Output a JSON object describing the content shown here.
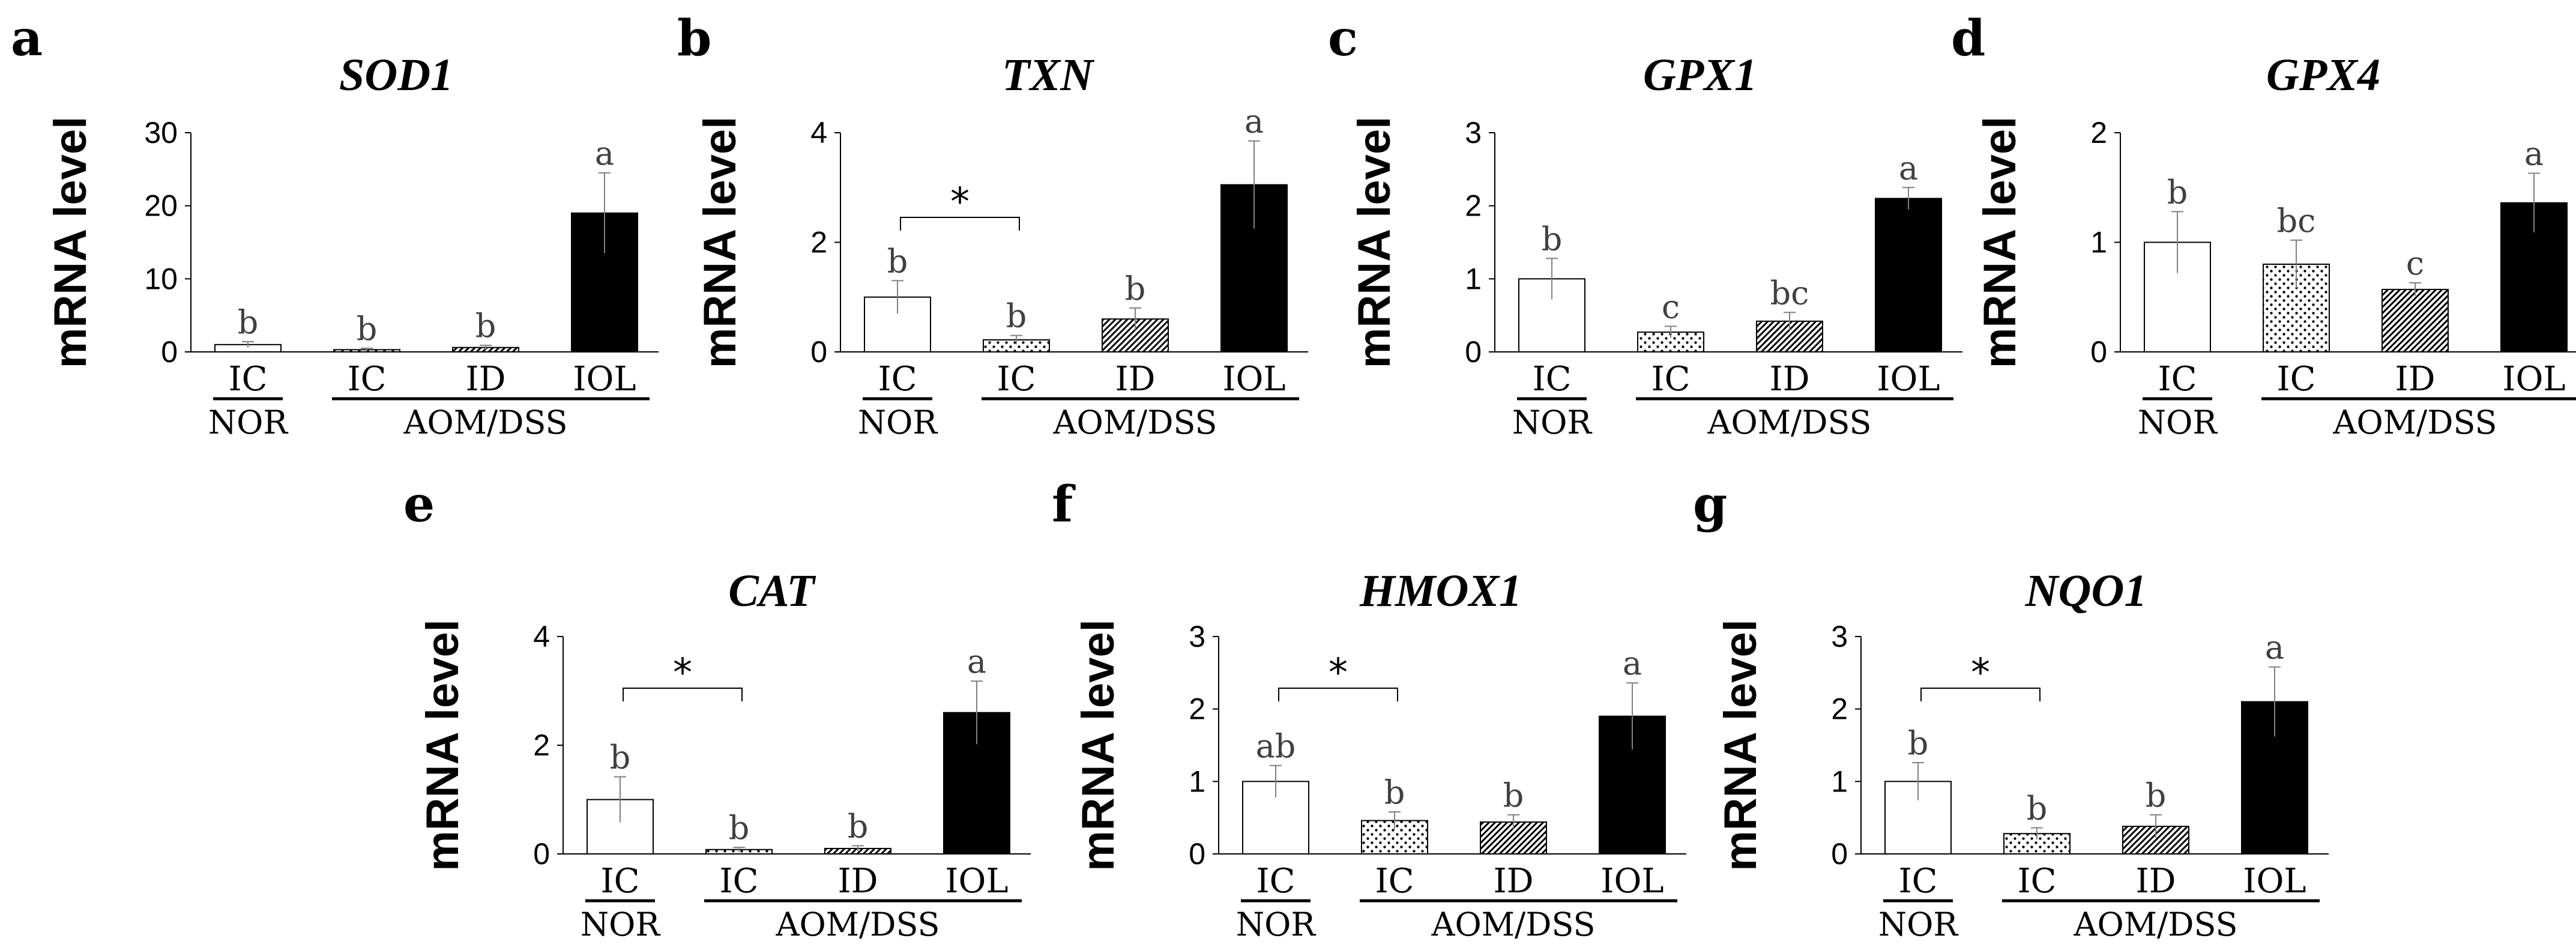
{
  "chart_data": [
    {
      "panel": "a",
      "type": "bar",
      "title": "SOD1",
      "ylabel": "mRNA level",
      "ylim": [
        0,
        30
      ],
      "yticks": [
        "0",
        "10",
        "20",
        "30"
      ],
      "categories": [
        "IC",
        "IC",
        "ID",
        "IOL"
      ],
      "groups": [
        "NOR",
        "AOM/DSS"
      ],
      "values": [
        1.0,
        0.3,
        0.6,
        19.0
      ],
      "errors": [
        0.4,
        0.2,
        0.3,
        5.5
      ],
      "letters": [
        "b",
        "b",
        "b",
        "a"
      ],
      "significance": null
    },
    {
      "panel": "b",
      "type": "bar",
      "title": "TXN",
      "ylabel": "mRNA level",
      "ylim": [
        0,
        4
      ],
      "yticks": [
        "0",
        "2",
        "4"
      ],
      "categories": [
        "IC",
        "IC",
        "ID",
        "IOL"
      ],
      "groups": [
        "NOR",
        "AOM/DSS"
      ],
      "values": [
        1.0,
        0.22,
        0.6,
        3.05
      ],
      "errors": [
        0.3,
        0.08,
        0.2,
        0.8
      ],
      "letters": [
        "b",
        "b",
        "b",
        "a"
      ],
      "significance": "*"
    },
    {
      "panel": "c",
      "type": "bar",
      "title": "GPX1",
      "ylabel": "mRNA level",
      "ylim": [
        0,
        3
      ],
      "yticks": [
        "0",
        "1",
        "2",
        "3"
      ],
      "categories": [
        "IC",
        "IC",
        "ID",
        "IOL"
      ],
      "groups": [
        "NOR",
        "AOM/DSS"
      ],
      "values": [
        1.0,
        0.27,
        0.42,
        2.1
      ],
      "errors": [
        0.28,
        0.08,
        0.12,
        0.15
      ],
      "letters": [
        "b",
        "c",
        "bc",
        "a"
      ],
      "significance": null
    },
    {
      "panel": "d",
      "type": "bar",
      "title": "GPX4",
      "ylabel": "mRNA level",
      "ylim": [
        0,
        2
      ],
      "yticks": [
        "0",
        "1",
        "2"
      ],
      "categories": [
        "IC",
        "IC",
        "ID",
        "IOL"
      ],
      "groups": [
        "NOR",
        "AOM/DSS"
      ],
      "values": [
        1.0,
        0.8,
        0.57,
        1.36
      ],
      "errors": [
        0.28,
        0.22,
        0.06,
        0.27
      ],
      "letters": [
        "b",
        "bc",
        "c",
        "a"
      ],
      "significance": null
    },
    {
      "panel": "e",
      "type": "bar",
      "title": "CAT",
      "ylabel": "mRNA level",
      "ylim": [
        0,
        4
      ],
      "yticks": [
        "0",
        "2",
        "4"
      ],
      "categories": [
        "IC",
        "IC",
        "ID",
        "IOL"
      ],
      "groups": [
        "NOR",
        "AOM/DSS"
      ],
      "values": [
        1.0,
        0.08,
        0.1,
        2.6
      ],
      "errors": [
        0.42,
        0.04,
        0.05,
        0.58
      ],
      "letters": [
        "b",
        "b",
        "b",
        "a"
      ],
      "significance": "*"
    },
    {
      "panel": "f",
      "type": "bar",
      "title": "HMOX1",
      "ylabel": "mRNA level",
      "ylim": [
        0,
        3
      ],
      "yticks": [
        "0",
        "1",
        "2",
        "3"
      ],
      "categories": [
        "IC",
        "IC",
        "ID",
        "IOL"
      ],
      "groups": [
        "NOR",
        "AOM/DSS"
      ],
      "values": [
        1.0,
        0.46,
        0.44,
        1.9
      ],
      "errors": [
        0.22,
        0.12,
        0.1,
        0.46
      ],
      "letters": [
        "ab",
        "b",
        "b",
        "a"
      ],
      "significance": "*"
    },
    {
      "panel": "g",
      "type": "bar",
      "title": "NQO1",
      "ylabel": "mRNA level",
      "ylim": [
        0,
        3
      ],
      "yticks": [
        "0",
        "1",
        "2",
        "3"
      ],
      "categories": [
        "IC",
        "IC",
        "ID",
        "IOL"
      ],
      "groups": [
        "NOR",
        "AOM/DSS"
      ],
      "values": [
        1.0,
        0.28,
        0.38,
        2.1
      ],
      "errors": [
        0.26,
        0.08,
        0.16,
        0.48
      ],
      "letters": [
        "b",
        "b",
        "b",
        "a"
      ],
      "significance": "*"
    }
  ]
}
